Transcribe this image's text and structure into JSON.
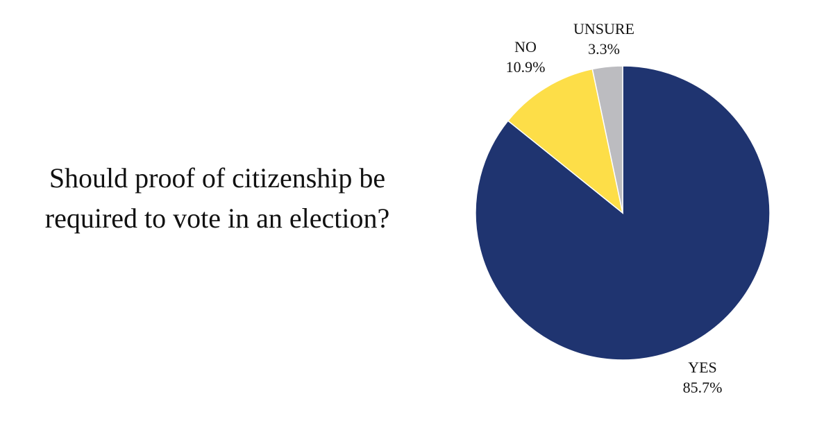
{
  "question": "Should proof of citizenship be required to vote in an election?",
  "colors": {
    "yes": "#1f3470",
    "no": "#fdde48",
    "unsure": "#bcbcc0"
  },
  "chart_data": {
    "type": "pie",
    "title": "Should proof of citizenship be required to vote in an election?",
    "slices": [
      {
        "label": "YES",
        "value": 85.7,
        "value_label": "85.7%",
        "color": "#1f3470"
      },
      {
        "label": "NO",
        "value": 10.9,
        "value_label": "10.9%",
        "color": "#fdde48"
      },
      {
        "label": "UNSURE",
        "value": 3.3,
        "value_label": "3.3%",
        "color": "#bcbcc0"
      }
    ]
  }
}
